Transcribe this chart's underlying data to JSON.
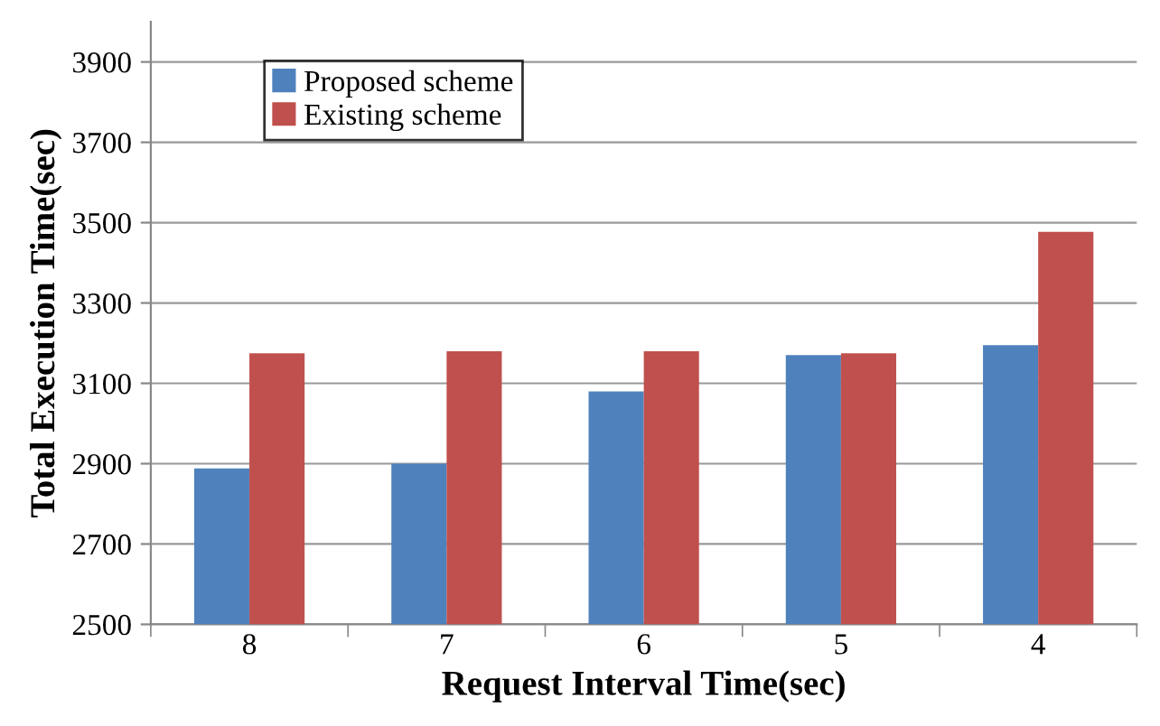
{
  "chart_data": {
    "type": "bar",
    "xlabel": "Request Interval Time(sec)",
    "ylabel": "Total Execution Time(sec)",
    "categories": [
      "8",
      "7",
      "6",
      "5",
      "4"
    ],
    "series": [
      {
        "name": "Proposed scheme",
        "color": "#4f81bd",
        "values": [
          2888,
          2900,
          3080,
          3170,
          3195
        ]
      },
      {
        "name": "Existing scheme",
        "color": "#c0504d",
        "values": [
          3175,
          3180,
          3180,
          3175,
          3477
        ]
      }
    ],
    "ylim": [
      2500,
      4000
    ],
    "yticks": [
      2500,
      2700,
      2900,
      3100,
      3300,
      3500,
      3700,
      3900
    ],
    "grid": "y",
    "legend": "top left"
  }
}
